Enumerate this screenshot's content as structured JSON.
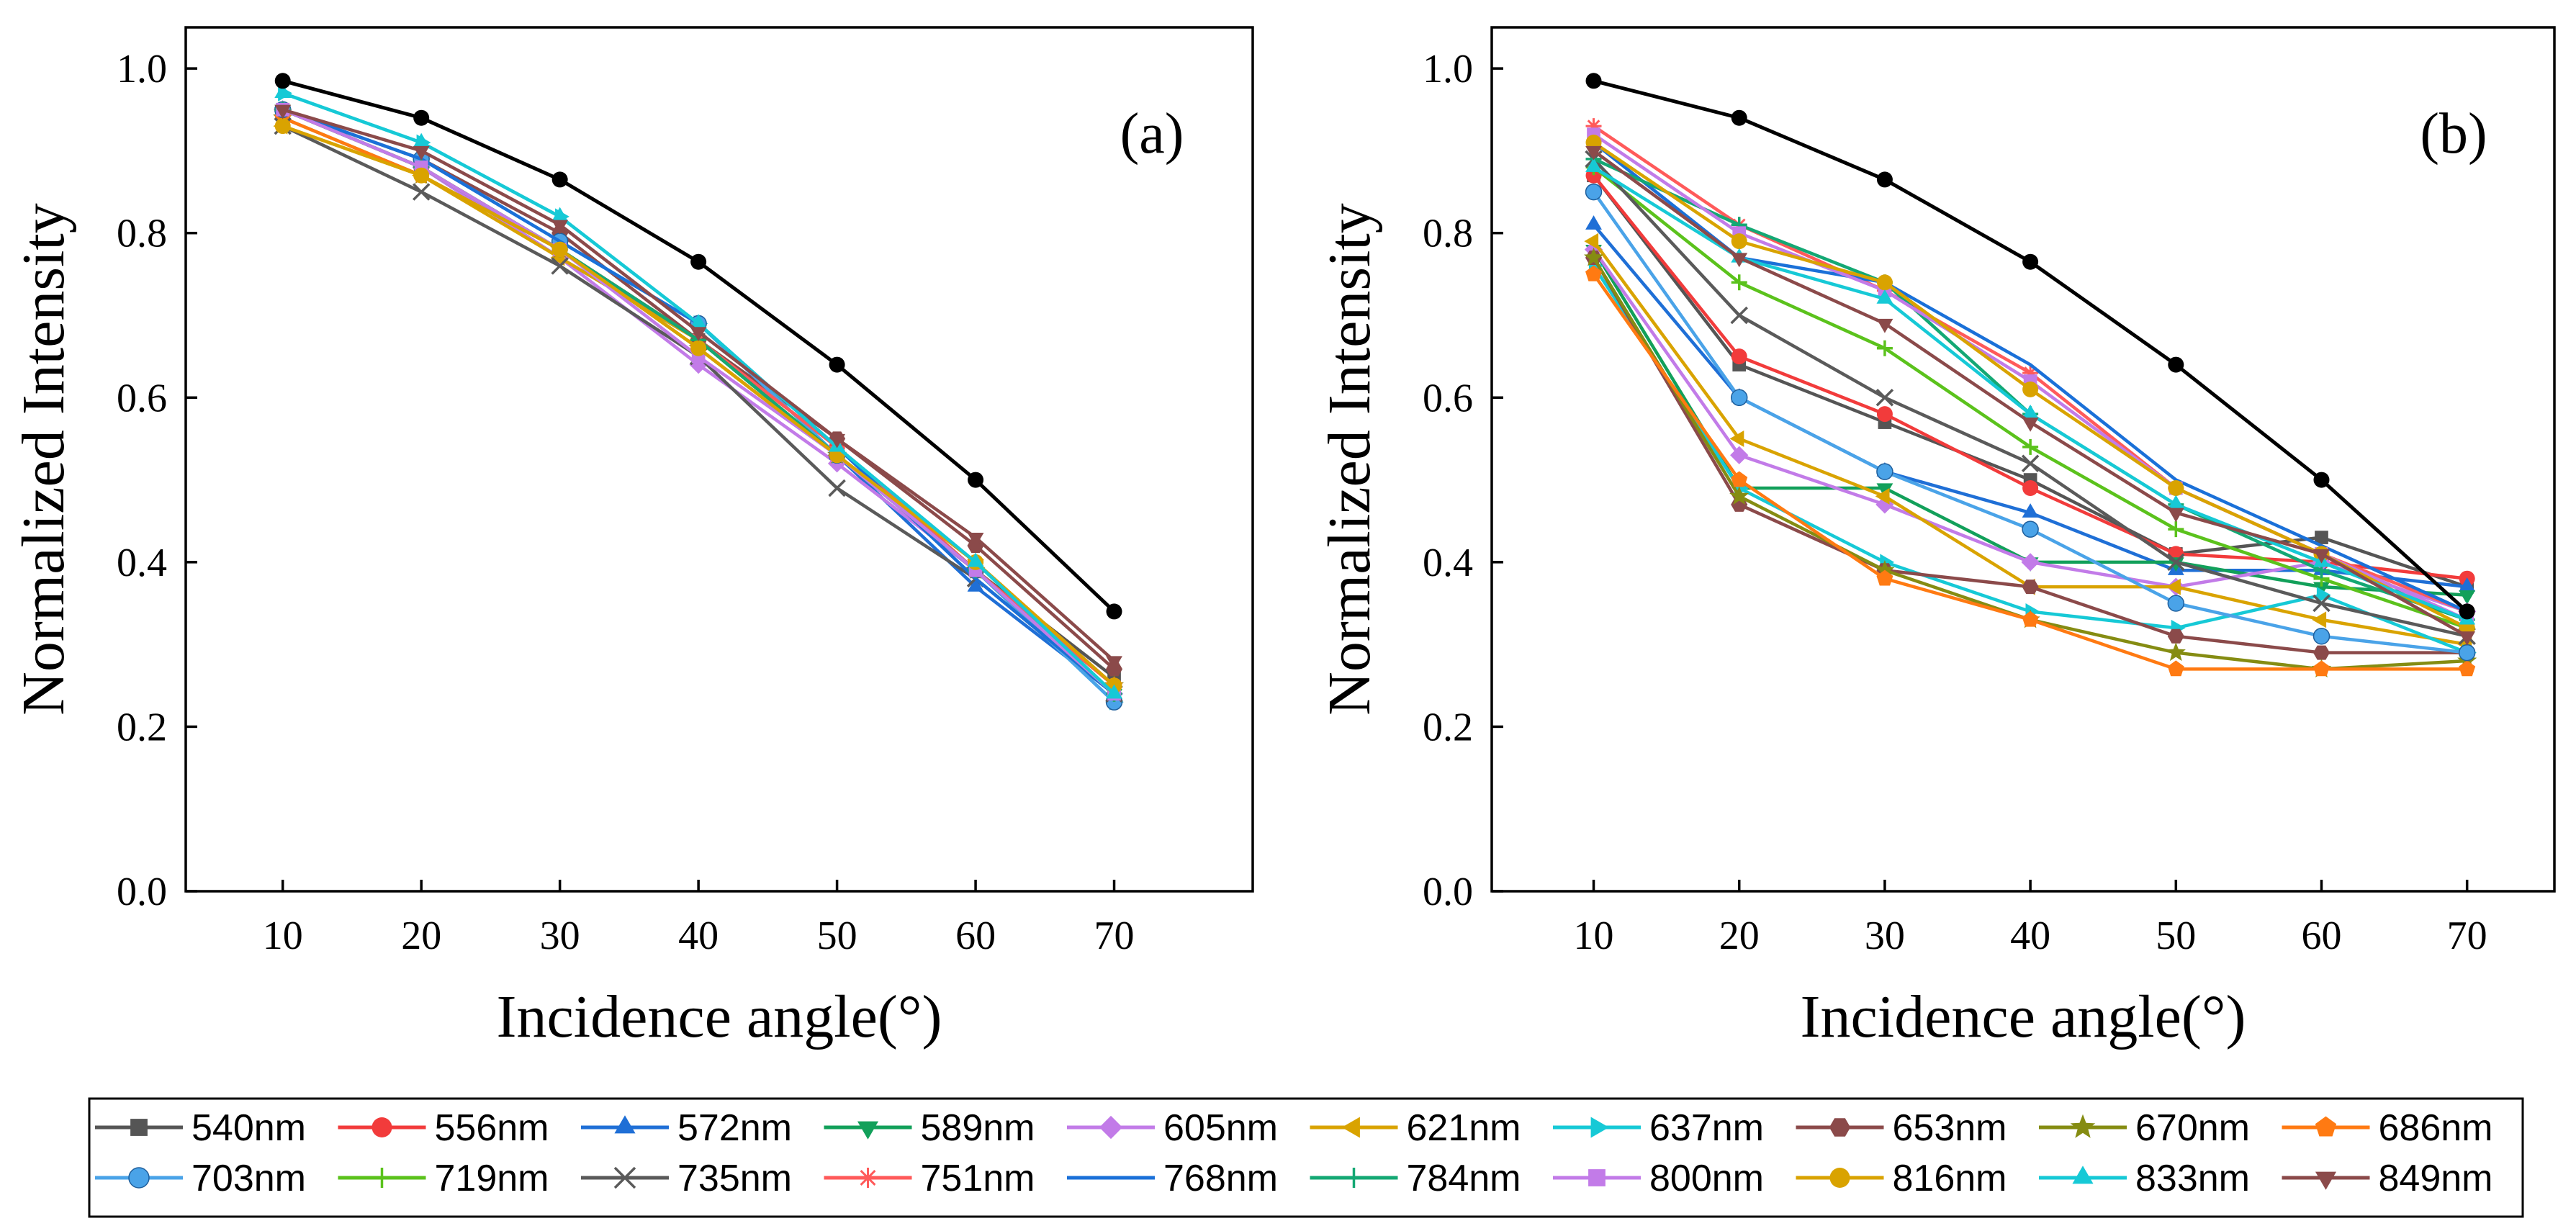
{
  "chart_data": [
    {
      "type": "line",
      "panel_label": "(a)",
      "xlabel": "Incidence angle(°)",
      "ylabel": "Normalized Intensity",
      "x": [
        10,
        20,
        30,
        40,
        50,
        60,
        70
      ],
      "xlim": [
        3,
        80
      ],
      "ylim": [
        0,
        1.05
      ],
      "xticks": [
        10,
        20,
        30,
        40,
        50,
        60,
        70
      ],
      "yticks": [
        0.0,
        0.2,
        0.4,
        0.6,
        0.8,
        1.0
      ],
      "ytick_labels": [
        "0.0",
        "0.2",
        "0.4",
        "0.6",
        "0.8",
        "1.0"
      ],
      "grid": false,
      "series": [
        {
          "name": "540nm",
          "values": [
            0.95,
            0.88,
            0.78,
            0.67,
            0.54,
            0.39,
            0.26
          ]
        },
        {
          "name": "556nm",
          "values": [
            0.95,
            0.88,
            0.78,
            0.67,
            0.54,
            0.39,
            0.25
          ]
        },
        {
          "name": "572nm",
          "values": [
            0.95,
            0.88,
            0.77,
            0.67,
            0.53,
            0.37,
            0.24
          ]
        },
        {
          "name": "589nm",
          "values": [
            0.95,
            0.88,
            0.78,
            0.67,
            0.53,
            0.39,
            0.24
          ]
        },
        {
          "name": "605nm",
          "values": [
            0.95,
            0.88,
            0.77,
            0.64,
            0.52,
            0.39,
            0.24
          ]
        },
        {
          "name": "621nm",
          "values": [
            0.93,
            0.87,
            0.77,
            0.67,
            0.53,
            0.39,
            0.24
          ]
        },
        {
          "name": "637nm",
          "values": [
            0.97,
            0.91,
            0.82,
            0.69,
            0.53,
            0.39,
            0.23
          ]
        },
        {
          "name": "653nm",
          "values": [
            0.95,
            0.89,
            0.8,
            0.67,
            0.55,
            0.42,
            0.27
          ]
        },
        {
          "name": "670nm",
          "values": [
            0.94,
            0.87,
            0.78,
            0.66,
            0.53,
            0.39,
            0.25
          ]
        },
        {
          "name": "686nm",
          "values": [
            0.94,
            0.87,
            0.78,
            0.66,
            0.53,
            0.4,
            0.25
          ]
        },
        {
          "name": "703nm",
          "values": [
            0.95,
            0.89,
            0.79,
            0.69,
            0.53,
            0.39,
            0.23
          ]
        },
        {
          "name": "719nm",
          "values": [
            0.95,
            0.88,
            0.78,
            0.67,
            0.53,
            0.4,
            0.24
          ]
        },
        {
          "name": "735nm",
          "values": [
            0.93,
            0.85,
            0.76,
            0.65,
            0.49,
            0.38,
            0.24
          ]
        },
        {
          "name": "751nm",
          "values": [
            0.95,
            0.88,
            0.78,
            0.67,
            0.54,
            0.39,
            0.25
          ]
        },
        {
          "name": "768nm",
          "values": [
            0.95,
            0.89,
            0.79,
            0.69,
            0.54,
            0.38,
            0.24
          ]
        },
        {
          "name": "784nm",
          "values": [
            0.95,
            0.88,
            0.78,
            0.67,
            0.53,
            0.39,
            0.24
          ]
        },
        {
          "name": "800nm",
          "values": [
            0.95,
            0.88,
            0.78,
            0.65,
            0.53,
            0.39,
            0.24
          ]
        },
        {
          "name": "816nm",
          "values": [
            0.93,
            0.87,
            0.78,
            0.66,
            0.53,
            0.4,
            0.25
          ]
        },
        {
          "name": "833nm",
          "values": [
            0.97,
            0.91,
            0.82,
            0.69,
            0.54,
            0.4,
            0.24
          ]
        },
        {
          "name": "849nm",
          "values": [
            0.95,
            0.9,
            0.81,
            0.68,
            0.55,
            0.43,
            0.28
          ]
        },
        {
          "name": "",
          "values": [
            0.985,
            0.94,
            0.865,
            0.765,
            0.64,
            0.5,
            0.34
          ]
        }
      ]
    },
    {
      "type": "line",
      "panel_label": "(b)",
      "xlabel": "Incidence angle(°)",
      "ylabel": "Normalized Intensity",
      "x": [
        10,
        20,
        30,
        40,
        50,
        60,
        70
      ],
      "xlim": [
        3,
        76
      ],
      "ylim": [
        0,
        1.05
      ],
      "xticks": [
        10,
        20,
        30,
        40,
        50,
        60,
        70
      ],
      "yticks": [
        0.0,
        0.2,
        0.4,
        0.6,
        0.8,
        1.0
      ],
      "ytick_labels": [
        "0.0",
        "0.2",
        "0.4",
        "0.6",
        "0.8",
        "1.0"
      ],
      "grid": false,
      "series": [
        {
          "name": "540nm",
          "values": [
            0.87,
            0.64,
            0.57,
            0.5,
            0.41,
            0.43,
            0.37
          ]
        },
        {
          "name": "556nm",
          "values": [
            0.87,
            0.65,
            0.58,
            0.49,
            0.41,
            0.4,
            0.38
          ]
        },
        {
          "name": "572nm",
          "values": [
            0.81,
            0.6,
            0.51,
            0.46,
            0.39,
            0.39,
            0.37
          ]
        },
        {
          "name": "589nm",
          "values": [
            0.78,
            0.49,
            0.49,
            0.4,
            0.4,
            0.37,
            0.36
          ]
        },
        {
          "name": "605nm",
          "values": [
            0.78,
            0.53,
            0.47,
            0.4,
            0.37,
            0.4,
            0.34
          ]
        },
        {
          "name": "621nm",
          "values": [
            0.79,
            0.55,
            0.48,
            0.37,
            0.37,
            0.33,
            0.3
          ]
        },
        {
          "name": "637nm",
          "values": [
            0.76,
            0.49,
            0.4,
            0.34,
            0.32,
            0.36,
            0.29
          ]
        },
        {
          "name": "653nm",
          "values": [
            0.77,
            0.47,
            0.39,
            0.37,
            0.31,
            0.29,
            0.29
          ]
        },
        {
          "name": "670nm",
          "values": [
            0.77,
            0.48,
            0.39,
            0.33,
            0.29,
            0.27,
            0.28
          ]
        },
        {
          "name": "686nm",
          "values": [
            0.75,
            0.5,
            0.38,
            0.33,
            0.27,
            0.27,
            0.27
          ]
        },
        {
          "name": "703nm",
          "values": [
            0.85,
            0.6,
            0.51,
            0.44,
            0.35,
            0.31,
            0.29
          ]
        },
        {
          "name": "719nm",
          "values": [
            0.88,
            0.74,
            0.66,
            0.54,
            0.44,
            0.38,
            0.32
          ]
        },
        {
          "name": "735nm",
          "values": [
            0.89,
            0.7,
            0.6,
            0.52,
            0.4,
            0.35,
            0.31
          ]
        },
        {
          "name": "751nm",
          "values": [
            0.93,
            0.81,
            0.73,
            0.63,
            0.49,
            0.41,
            0.34
          ]
        },
        {
          "name": "768nm",
          "values": [
            0.91,
            0.77,
            0.74,
            0.64,
            0.5,
            0.42,
            0.34
          ]
        },
        {
          "name": "784nm",
          "values": [
            0.89,
            0.81,
            0.74,
            0.58,
            0.47,
            0.39,
            0.33
          ]
        },
        {
          "name": "800nm",
          "values": [
            0.92,
            0.8,
            0.73,
            0.62,
            0.49,
            0.41,
            0.33
          ]
        },
        {
          "name": "816nm",
          "values": [
            0.91,
            0.79,
            0.74,
            0.61,
            0.49,
            0.41,
            0.32
          ]
        },
        {
          "name": "833nm",
          "values": [
            0.88,
            0.77,
            0.72,
            0.58,
            0.47,
            0.4,
            0.33
          ]
        },
        {
          "name": "849nm",
          "values": [
            0.9,
            0.77,
            0.69,
            0.57,
            0.46,
            0.41,
            0.31
          ]
        },
        {
          "name": "",
          "values": [
            0.985,
            0.94,
            0.865,
            0.765,
            0.64,
            0.5,
            0.34
          ]
        }
      ]
    }
  ],
  "legend": [
    {
      "name": "540nm",
      "color": "#555555",
      "marker": "square"
    },
    {
      "name": "556nm",
      "color": "#f23b3b",
      "marker": "circle"
    },
    {
      "name": "572nm",
      "color": "#1f6fd6",
      "marker": "triangle-up"
    },
    {
      "name": "589nm",
      "color": "#12a05a",
      "marker": "triangle-down"
    },
    {
      "name": "605nm",
      "color": "#c27be8",
      "marker": "diamond"
    },
    {
      "name": "621nm",
      "color": "#d9a300",
      "marker": "triangle-left"
    },
    {
      "name": "637nm",
      "color": "#16c9d6",
      "marker": "triangle-right"
    },
    {
      "name": "653nm",
      "color": "#8b4a4a",
      "marker": "hexagon"
    },
    {
      "name": "670nm",
      "color": "#858c12",
      "marker": "star"
    },
    {
      "name": "686nm",
      "color": "#ff7a12",
      "marker": "pentagon"
    },
    {
      "name": "703nm",
      "color": "#4aa3e8",
      "marker": "sphere"
    },
    {
      "name": "719nm",
      "color": "#5bc21c",
      "marker": "plus"
    },
    {
      "name": "735nm",
      "color": "#5a5a5a",
      "marker": "x"
    },
    {
      "name": "751nm",
      "color": "#ff5a5a",
      "marker": "asterisk"
    },
    {
      "name": "768nm",
      "color": "#1a70d8",
      "marker": "none"
    },
    {
      "name": "784nm",
      "color": "#14a874",
      "marker": "plus"
    },
    {
      "name": "800nm",
      "color": "#c27be8",
      "marker": "square"
    },
    {
      "name": "816nm",
      "color": "#d9a300",
      "marker": "circle"
    },
    {
      "name": "833nm",
      "color": "#16c9d6",
      "marker": "triangle-up"
    },
    {
      "name": "849nm",
      "color": "#8b4a4a",
      "marker": "triangle-down"
    }
  ],
  "reference_series_color": "#000000"
}
